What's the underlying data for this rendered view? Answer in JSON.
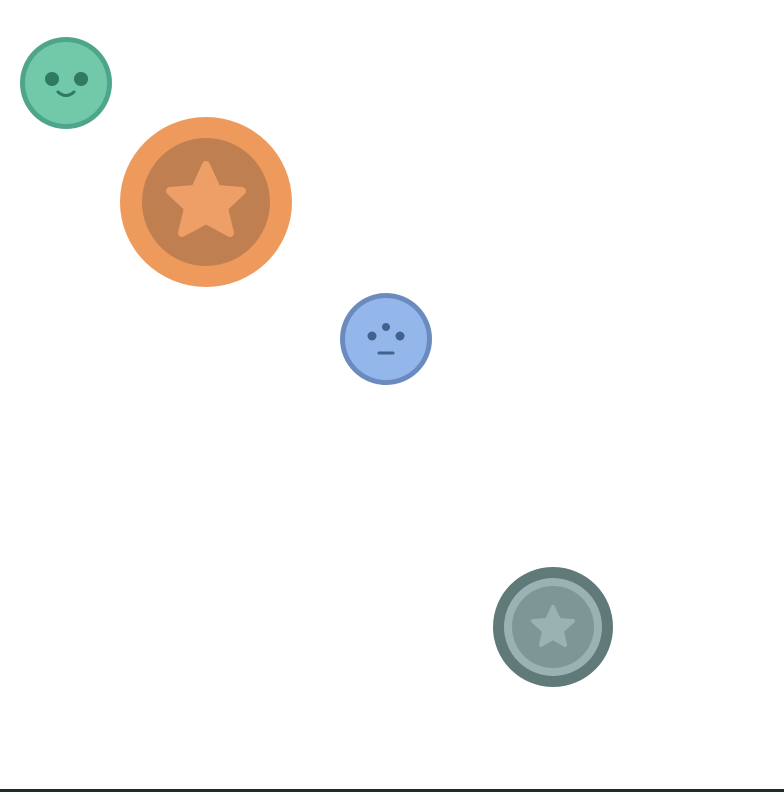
{
  "tokens": [
    {
      "id": "green-smile",
      "icon": "smiley-face-icon",
      "colors": {
        "rim": "#4fa58a",
        "fill": "#72c9a9",
        "face": "#2f7a62"
      }
    },
    {
      "id": "orange-star",
      "icon": "star-icon",
      "colors": {
        "rim": "#ee9a5d",
        "fill": "#c07f50",
        "star": "#ee9f68"
      }
    },
    {
      "id": "blue-neutral",
      "icon": "neutral-face-icon",
      "colors": {
        "rim": "#6b8bbf",
        "fill": "#93b7ea",
        "face": "#41628f"
      }
    },
    {
      "id": "gray-star",
      "icon": "star-icon",
      "colors": {
        "rim": "#5f7a79",
        "ring": "#9ab2b1",
        "fill": "#7c9796",
        "star": "#9ab2b1"
      }
    }
  ],
  "colors": {
    "background": "#ffffff",
    "bottom_edge": "#1f2a2e"
  }
}
